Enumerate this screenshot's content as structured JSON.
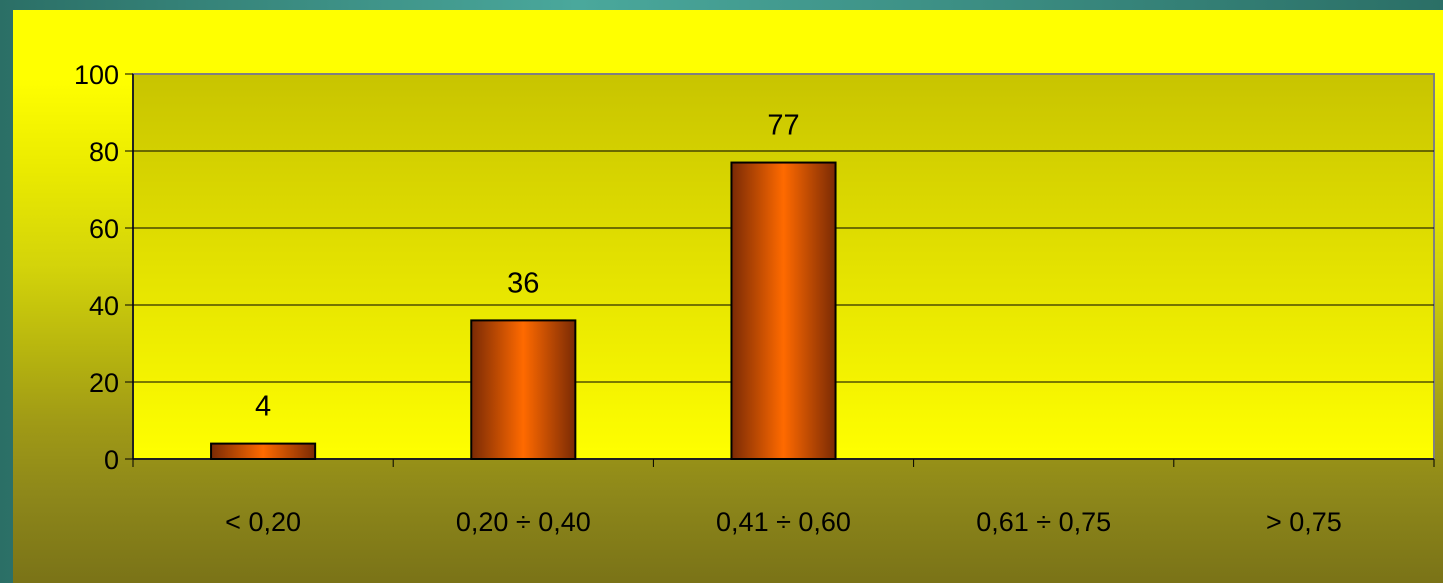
{
  "colors": {
    "bar_dark": "#7a2a05",
    "bar_light": "#ff6a00",
    "plot_top": "#c8c400",
    "plot_bottom": "#ffff00",
    "grid": "#000000"
  },
  "chart_data": {
    "type": "bar",
    "title": "",
    "xlabel": "",
    "ylabel": "",
    "categories": [
      "< 0,20",
      "0,20 ÷ 0,40",
      "0,41 ÷ 0,60",
      "0,61 ÷ 0,75",
      "> 0,75"
    ],
    "values": [
      4,
      36,
      77,
      null,
      null
    ],
    "data_labels": [
      "4",
      "36",
      "77",
      "",
      ""
    ],
    "ylim": [
      0,
      100
    ],
    "yticks": [
      0,
      20,
      40,
      60,
      80,
      100
    ],
    "ytick_labels": [
      "0",
      "20",
      "40",
      "60",
      "80",
      "100"
    ],
    "grid": true,
    "legend": "none"
  }
}
